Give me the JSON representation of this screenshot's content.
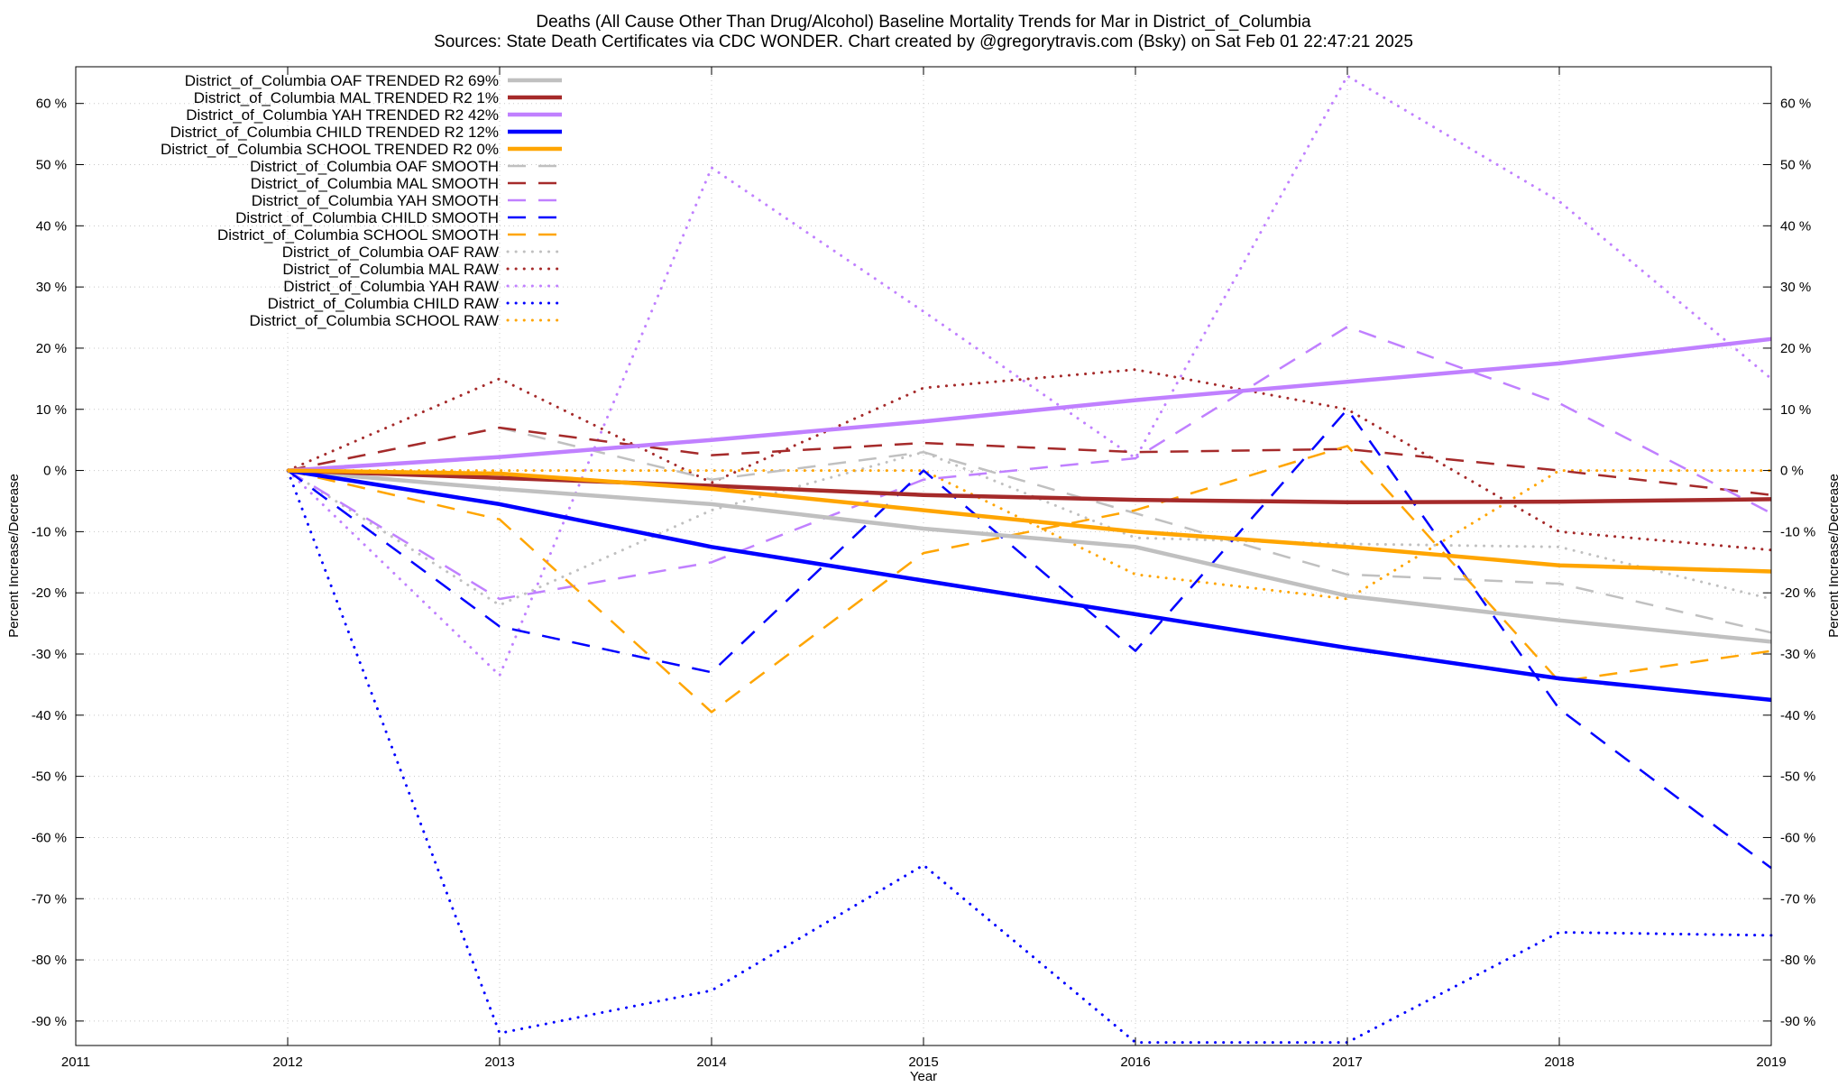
{
  "chart_data": {
    "type": "line",
    "title": "Deaths (All Cause Other Than Drug/Alcohol)  Baseline Mortality Trends for Mar in District_of_Columbia",
    "subtitle": "Sources: State Death Certificates via CDC WONDER.              Chart created by @gregorytravis.com (Bsky) on Sat Feb 01 22:47:21 2025",
    "xlabel": "Year",
    "ylabel": "Percent Increase/Decrease",
    "y2label": "Percent Increase/Decrease",
    "xlim": [
      2011,
      2019
    ],
    "ylim": [
      -94,
      66
    ],
    "grid": true,
    "legend_position": "top-left",
    "x_ticks": [
      {
        "value": 2011,
        "label": "2011"
      },
      {
        "value": 2012,
        "label": "2012"
      },
      {
        "value": 2013,
        "label": "2013"
      },
      {
        "value": 2014,
        "label": "2014"
      },
      {
        "value": 2015,
        "label": "2015"
      },
      {
        "value": 2016,
        "label": "2016"
      },
      {
        "value": 2017,
        "label": "2017"
      },
      {
        "value": 2018,
        "label": "2018"
      },
      {
        "value": 2019,
        "label": "2019"
      }
    ],
    "y_ticks": [
      {
        "value": 60,
        "label": "60 %"
      },
      {
        "value": 50,
        "label": "50 %"
      },
      {
        "value": 40,
        "label": "40 %"
      },
      {
        "value": 30,
        "label": "30 %"
      },
      {
        "value": 20,
        "label": "20 %"
      },
      {
        "value": 10,
        "label": "10 %"
      },
      {
        "value": 0,
        "label": "0 %"
      },
      {
        "value": -10,
        "label": "-10 %"
      },
      {
        "value": -20,
        "label": "-20 %"
      },
      {
        "value": -30,
        "label": "-30 %"
      },
      {
        "value": -40,
        "label": "-40 %"
      },
      {
        "value": -50,
        "label": "-50 %"
      },
      {
        "value": -60,
        "label": "-60 %"
      },
      {
        "value": -70,
        "label": "-70 %"
      },
      {
        "value": -80,
        "label": "-80 %"
      },
      {
        "value": -90,
        "label": "-90 %"
      }
    ],
    "series": [
      {
        "name": "District_of_Columbia OAF TRENDED R2  69%",
        "style": "solid",
        "color": "#c0c0c0",
        "x": [
          2012,
          2013,
          2014,
          2015,
          2016,
          2017,
          2018,
          2019
        ],
        "values": [
          0,
          -3,
          -5.5,
          -9.5,
          -12.5,
          -20.5,
          -24.5,
          -28
        ]
      },
      {
        "name": "District_of_Columbia MAL TRENDED R2   1%",
        "style": "solid",
        "color": "#a52a2a",
        "x": [
          2012,
          2013,
          2014,
          2015,
          2016,
          2017,
          2018,
          2019
        ],
        "values": [
          0,
          -1.2,
          -2.5,
          -4,
          -4.8,
          -5.2,
          -5.1,
          -4.7
        ]
      },
      {
        "name": "District_of_Columbia YAH TRENDED R2  42%",
        "style": "solid",
        "color": "#c080ff",
        "x": [
          2012,
          2013,
          2014,
          2015,
          2016,
          2017,
          2018,
          2019
        ],
        "values": [
          0,
          2.2,
          5,
          8,
          11.5,
          14.5,
          17.5,
          21.5
        ]
      },
      {
        "name": "District_of_Columbia CHILD TRENDED R2  12%",
        "style": "solid",
        "color": "#0000ff",
        "x": [
          2012,
          2013,
          2014,
          2015,
          2016,
          2017,
          2018,
          2019
        ],
        "values": [
          0,
          -5.5,
          -12.5,
          -18,
          -23.5,
          -29,
          -34,
          -37.5
        ]
      },
      {
        "name": "District_of_Columbia SCHOOL TRENDED R2   0%",
        "style": "solid",
        "color": "#ffa500",
        "x": [
          2012,
          2013,
          2014,
          2015,
          2016,
          2017,
          2018,
          2019
        ],
        "values": [
          0,
          -0.5,
          -3,
          -6.5,
          -10,
          -12.5,
          -15.5,
          -16.5
        ]
      },
      {
        "name": "District_of_Columbia OAF SMOOTH",
        "style": "dashed",
        "color": "#c0c0c0",
        "x": [
          2012,
          2013,
          2014,
          2015,
          2016,
          2017,
          2018,
          2019
        ],
        "values": [
          0,
          7,
          -1.5,
          3,
          -7,
          -17,
          -18.5,
          -26.5
        ]
      },
      {
        "name": "District_of_Columbia MAL SMOOTH",
        "style": "dashed",
        "color": "#a52a2a",
        "x": [
          2012,
          2013,
          2014,
          2015,
          2016,
          2017,
          2018,
          2019
        ],
        "values": [
          0,
          7,
          2.5,
          4.5,
          3,
          3.5,
          0,
          -4
        ]
      },
      {
        "name": "District_of_Columbia YAH SMOOTH",
        "style": "dashed",
        "color": "#c080ff",
        "x": [
          2012,
          2013,
          2014,
          2015,
          2016,
          2017,
          2018,
          2019
        ],
        "values": [
          0,
          -21,
          -15,
          -1.5,
          2,
          23.5,
          11,
          -7
        ]
      },
      {
        "name": "District_of_Columbia CHILD SMOOTH",
        "style": "dashed",
        "color": "#0000ff",
        "x": [
          2012,
          2013,
          2014,
          2015,
          2016,
          2017,
          2018,
          2019
        ],
        "values": [
          0,
          -25.5,
          -33,
          0,
          -29.5,
          10,
          -39,
          -65
        ]
      },
      {
        "name": "District_of_Columbia SCHOOL SMOOTH",
        "style": "dashed",
        "color": "#ffa500",
        "x": [
          2012,
          2013,
          2014,
          2015,
          2016,
          2017,
          2018,
          2019
        ],
        "values": [
          0,
          -8,
          -39.5,
          -13.5,
          -6.5,
          4,
          -34.5,
          -29.5
        ]
      },
      {
        "name": "District_of_Columbia OAF RAW",
        "style": "dotted",
        "color": "#c0c0c0",
        "x": [
          2012,
          2013,
          2014,
          2015,
          2016,
          2017,
          2018,
          2019
        ],
        "values": [
          0,
          -22,
          -6.5,
          3,
          -11,
          -12,
          -12.5,
          -21
        ]
      },
      {
        "name": "District_of_Columbia MAL RAW",
        "style": "dotted",
        "color": "#a52a2a",
        "x": [
          2012,
          2013,
          2014,
          2015,
          2016,
          2017,
          2018,
          2019
        ],
        "values": [
          0,
          15,
          -2,
          13.5,
          16.5,
          10,
          -10,
          -13
        ]
      },
      {
        "name": "District_of_Columbia YAH RAW",
        "style": "dotted",
        "color": "#c080ff",
        "x": [
          2012,
          2013,
          2014,
          2015,
          2016,
          2017,
          2018,
          2019
        ],
        "values": [
          0,
          -33.5,
          49.5,
          26,
          2,
          64.5,
          44,
          15
        ]
      },
      {
        "name": "District_of_Columbia CHILD RAW",
        "style": "dotted",
        "color": "#0000ff",
        "x": [
          2012,
          2013,
          2014,
          2015,
          2016,
          2017,
          2018,
          2019
        ],
        "values": [
          0,
          -92,
          -85,
          -64.5,
          -93.5,
          -93.5,
          -75.5,
          -76
        ]
      },
      {
        "name": "District_of_Columbia SCHOOL RAW",
        "style": "dotted",
        "color": "#ffa500",
        "x": [
          2012,
          2013,
          2014,
          2015,
          2016,
          2017,
          2018,
          2019
        ],
        "values": [
          0,
          0,
          0,
          0,
          -17,
          -21,
          0,
          0
        ]
      }
    ]
  }
}
